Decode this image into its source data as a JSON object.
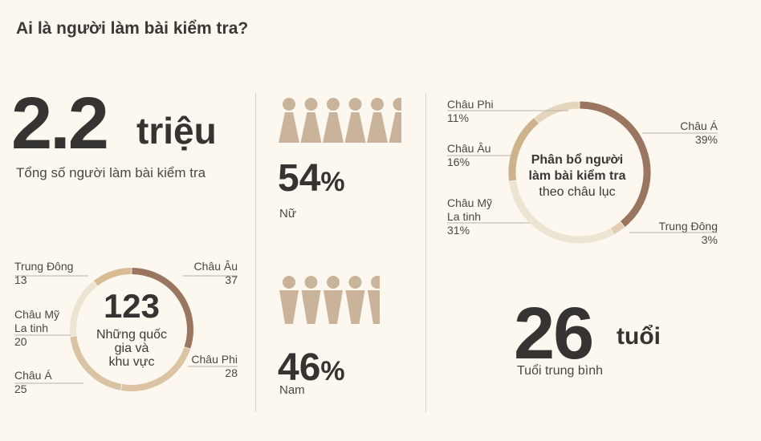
{
  "title": "Ai là người làm bài kiểm tra?",
  "total": {
    "value": "2.2",
    "unit": "triệu",
    "caption": "Tổng số người làm bài kiểm tra"
  },
  "gender": {
    "female": {
      "value": "54",
      "pct": "%",
      "label": "Nữ"
    },
    "male": {
      "value": "46",
      "pct": "%",
      "label": "Nam"
    }
  },
  "age": {
    "value": "26",
    "unit": "tuổi",
    "caption": "Tuổi trung bình"
  },
  "colors": {
    "europe": "#a08068",
    "africa": "#d8c4a4",
    "latam": "#ece5d3",
    "asia": "#d4ba96",
    "middle_east": "#dfc6a8",
    "asia_dark": "#9a7560",
    "gender_icons": "#c9b39a"
  },
  "chart_data": [
    {
      "type": "pie",
      "title": "Những quốc gia và khu vực",
      "center_value": "123",
      "center_caption": [
        "Những quốc",
        "gia và",
        "khu vực"
      ],
      "labels": [
        "Châu Âu",
        "Châu Phi",
        "Châu Á",
        "Châu Mỹ La tinh",
        "Trung Đông"
      ],
      "values": [
        37,
        28,
        25,
        20,
        13
      ]
    },
    {
      "type": "pie",
      "title": "Phân bổ người làm bài kiểm tra theo châu lục",
      "center_caption": [
        "Phân bổ người",
        "làm bài kiểm tra",
        "theo châu lục"
      ],
      "labels": [
        "Châu Á",
        "Trung Đông",
        "Châu Mỹ La tinh",
        "Châu Âu",
        "Châu Phi"
      ],
      "values": [
        39,
        3,
        31,
        16,
        11
      ],
      "unit": "%"
    }
  ],
  "left_ring_labels": {
    "middle_east": {
      "name": "Trung Đông",
      "value": "13"
    },
    "latam": {
      "name1": "Châu Mỹ",
      "name2": "La tinh",
      "value": "20"
    },
    "asia": {
      "name": "Châu Á",
      "value": "25"
    },
    "europe": {
      "name": "Châu Âu",
      "value": "37"
    },
    "africa": {
      "name": "Châu Phi",
      "value": "28"
    }
  },
  "right_ring_labels": {
    "africa": {
      "name": "Châu Phi",
      "value": "11%"
    },
    "europe": {
      "name": "Châu Âu",
      "value": "16%"
    },
    "latam": {
      "name1": "Châu Mỹ",
      "name2": "La tinh",
      "value": "31%"
    },
    "asia": {
      "name": "Châu Á",
      "value": "39%"
    },
    "middle_east": {
      "name": "Trung Đông",
      "value": "3%"
    }
  }
}
